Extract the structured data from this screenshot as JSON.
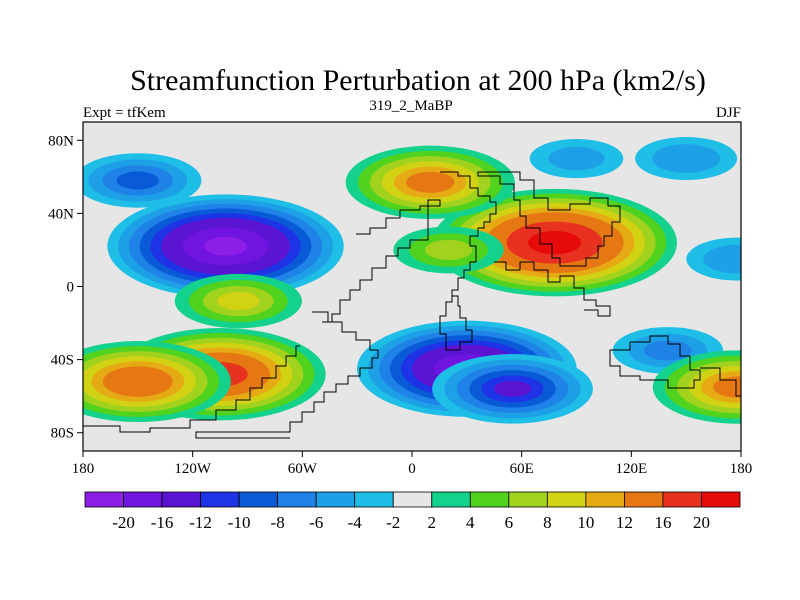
{
  "chart_data": {
    "type": "heatmap",
    "title": "Streamfunction Perturbation at 200 hPa (km2/s)",
    "left_label": "Expt = tfKem",
    "center_label": "319_2_MaBP",
    "right_label": "DJF",
    "x_ticks": [
      "180",
      "120W",
      "60W",
      "0",
      "60E",
      "120E",
      "180"
    ],
    "x_tick_values": [
      -180,
      -120,
      -60,
      0,
      60,
      120,
      180
    ],
    "y_ticks": [
      "80N",
      "40N",
      "0",
      "40S",
      "80S"
    ],
    "y_tick_values": [
      80,
      40,
      0,
      -40,
      -80
    ],
    "xlim": [
      -180,
      180
    ],
    "ylim": [
      -90,
      90
    ],
    "colorbar": {
      "labels": [
        "-20",
        "-16",
        "-12",
        "-10",
        "-8",
        "-6",
        "-4",
        "-2",
        "2",
        "4",
        "6",
        "8",
        "10",
        "12",
        "16",
        "20"
      ],
      "colors": [
        "#8c1ee6",
        "#7014e0",
        "#5a14d2",
        "#1e32e6",
        "#0a5ad7",
        "#1e82e6",
        "#1ea0e6",
        "#1ebee6",
        "#e6e6e6",
        "#14d28c",
        "#50d21e",
        "#a0d21e",
        "#d2d214",
        "#e6aa14",
        "#e67814",
        "#e6321e",
        "#e60a0a"
      ]
    },
    "features": [
      {
        "kind": "low",
        "lon": -102,
        "lat": 22,
        "peak": -21
      },
      {
        "kind": "low",
        "lon": -150,
        "lat": 58,
        "peak": -8
      },
      {
        "kind": "low",
        "lon": 30,
        "lat": -45,
        "peak": -19
      },
      {
        "kind": "low",
        "lon": 55,
        "lat": -56,
        "peak": -12
      },
      {
        "kind": "low",
        "lon": 140,
        "lat": -35,
        "peak": -6
      },
      {
        "kind": "low",
        "lon": 150,
        "lat": 70,
        "peak": -5
      },
      {
        "kind": "low",
        "lon": 90,
        "lat": 70,
        "peak": -4
      },
      {
        "kind": "low",
        "lon": 178,
        "lat": 15,
        "peak": -5
      },
      {
        "kind": "high",
        "lon": 78,
        "lat": 24,
        "peak": 22
      },
      {
        "kind": "high",
        "lon": 20,
        "lat": 20,
        "peak": 6
      },
      {
        "kind": "high",
        "lon": 10,
        "lat": 57,
        "peak": 13
      },
      {
        "kind": "high",
        "lon": -105,
        "lat": -48,
        "peak": 18
      },
      {
        "kind": "high",
        "lon": -150,
        "lat": -52,
        "peak": 15
      },
      {
        "kind": "high",
        "lon": -95,
        "lat": -8,
        "peak": 8
      },
      {
        "kind": "high",
        "lon": 178,
        "lat": -55,
        "peak": 13
      }
    ]
  }
}
